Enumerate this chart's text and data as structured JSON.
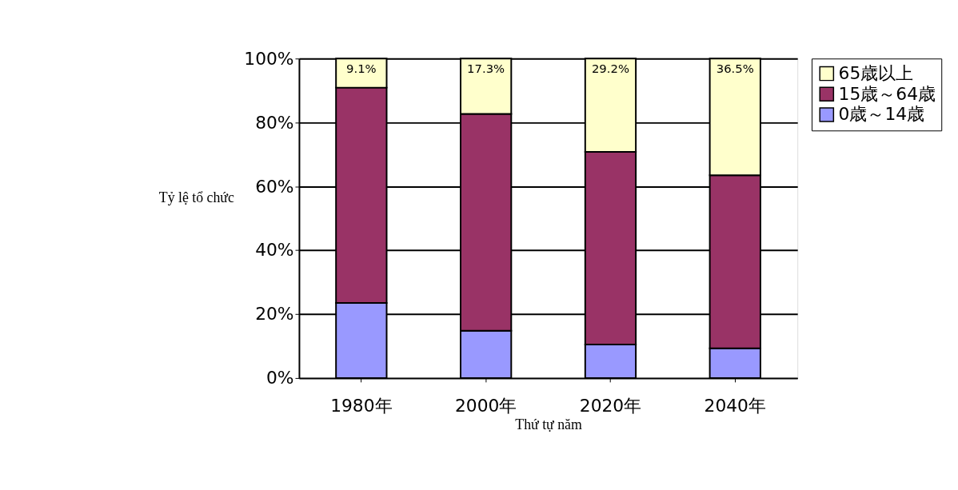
{
  "chart_data": {
    "type": "bar",
    "stacked": true,
    "xlabel": "Thứ tự năm",
    "ylabel": "Tỷ lệ tổ chức",
    "categories": [
      "1980年",
      "2000年",
      "2020年",
      "2040年"
    ],
    "series": [
      {
        "name": "0歳～14歳",
        "color": "#9999ff",
        "values": [
          23.5,
          14.8,
          10.5,
          9.3
        ]
      },
      {
        "name": "15歳～64歳",
        "color": "#993366",
        "values": [
          67.4,
          67.9,
          60.3,
          54.2
        ]
      },
      {
        "name": "65歳以上",
        "color": "#ffffcc",
        "values": [
          9.1,
          17.3,
          29.2,
          36.5
        ],
        "value_labels": [
          "9.1%",
          "17.3%",
          "29.2%",
          "36.5%"
        ]
      }
    ],
    "ylim": [
      0,
      100
    ],
    "yticks": [
      {
        "value": 0,
        "label": "0%"
      },
      {
        "value": 20,
        "label": "20%"
      },
      {
        "value": 40,
        "label": "40%"
      },
      {
        "value": 60,
        "label": "60%"
      },
      {
        "value": 80,
        "label": "80%"
      },
      {
        "value": 100,
        "label": "100%"
      }
    ],
    "grid": "y",
    "legend": "right"
  }
}
